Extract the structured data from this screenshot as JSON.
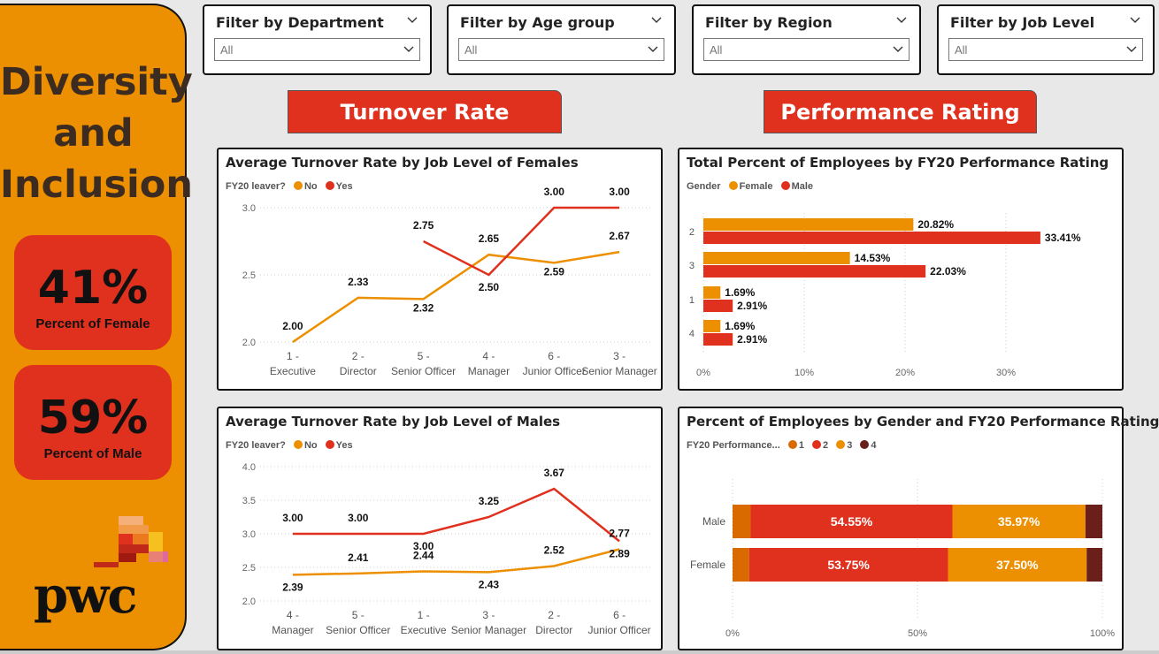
{
  "sidebar": {
    "title_lines": [
      "Diversity",
      "and",
      "Inclusion"
    ],
    "kpis": [
      {
        "value": "41%",
        "label": "Percent of Female"
      },
      {
        "value": "59%",
        "label": "Percent of Male"
      }
    ],
    "logo_text": "pwc"
  },
  "filters": [
    {
      "title": "Filter by Department",
      "value": "All"
    },
    {
      "title": "Filter by Age group",
      "value": "All"
    },
    {
      "title": "Filter by Region",
      "value": "All"
    },
    {
      "title": "Filter by Job Level",
      "value": "All"
    }
  ],
  "sections": {
    "turnover": "Turnover Rate",
    "performance": "Performance Rating"
  },
  "colors": {
    "orange": "#ec8f00",
    "red": "#e0301e",
    "darkred": "#6b1f1b",
    "darkorange": "#d96a00"
  },
  "chart_data": [
    {
      "type": "line",
      "title": "Average Turnover Rate by Job Level of Females",
      "legend_title": "FY20 leaver?",
      "categories": [
        "1 - Executive",
        "2 - Director",
        "5 - Senior Officer",
        "4 - Manager",
        "6 - Junior Officer",
        "3 - Senior Manager"
      ],
      "series": [
        {
          "name": "No",
          "values": [
            2.0,
            2.33,
            2.32,
            2.65,
            2.59,
            2.67
          ]
        },
        {
          "name": "Yes",
          "values": [
            null,
            null,
            2.75,
            2.5,
            3.0,
            3.0
          ]
        }
      ],
      "data_labels": {
        "No": [
          "2.00",
          "2.33",
          "2.32",
          "2.65",
          "2.59",
          "2.67"
        ],
        "Yes": [
          "",
          "",
          "2.75",
          "2.50",
          "3.00",
          "3.00"
        ]
      },
      "yticks": [
        "2.0",
        "2.5",
        "3.0"
      ],
      "ylim": [
        2.0,
        3.0
      ]
    },
    {
      "type": "line",
      "title": "Average Turnover Rate by Job Level of Males",
      "legend_title": "FY20 leaver?",
      "categories": [
        "4 - Manager",
        "5 - Senior Officer",
        "1 - Executive",
        "3 - Senior Manager",
        "2 - Director",
        "6 - Junior Officer"
      ],
      "series": [
        {
          "name": "No",
          "values": [
            2.39,
            2.41,
            2.44,
            2.43,
            2.52,
            2.77
          ]
        },
        {
          "name": "Yes",
          "values": [
            3.0,
            3.0,
            3.0,
            3.25,
            3.67,
            2.89
          ]
        }
      ],
      "data_labels": {
        "No": [
          "2.39",
          "2.41",
          "2.44",
          "2.43",
          "2.52",
          "2.77"
        ],
        "Yes": [
          "3.00",
          "3.00",
          "3.00",
          "3.25",
          "3.67",
          "2.89"
        ]
      },
      "yticks": [
        "2.0",
        "2.5",
        "3.0",
        "3.5",
        "4.0"
      ],
      "ylim": [
        2.0,
        4.0
      ]
    },
    {
      "type": "bar",
      "orientation": "horizontal",
      "title": "Total Percent of Employees by FY20 Performance Rating",
      "legend_title": "Gender",
      "categories": [
        "2",
        "3",
        "1",
        "4"
      ],
      "series": [
        {
          "name": "Female",
          "values": [
            20.82,
            14.53,
            1.69,
            1.69
          ]
        },
        {
          "name": "Male",
          "values": [
            33.41,
            22.03,
            2.91,
            2.91
          ]
        }
      ],
      "data_labels": {
        "Female": [
          "20.82%",
          "14.53%",
          "1.69%",
          "1.69%"
        ],
        "Male": [
          "33.41%",
          "22.03%",
          "2.91%",
          "2.91%"
        ]
      },
      "xticks": [
        "0%",
        "10%",
        "20%",
        "30%"
      ],
      "xlim": [
        0,
        40
      ]
    },
    {
      "type": "bar",
      "orientation": "horizontal",
      "stacked": "100%",
      "title": "Percent of Employees by Gender and FY20 Performance Rating",
      "legend_title": "FY20 Performance...",
      "categories": [
        "Male",
        "Female"
      ],
      "series": [
        {
          "name": "1",
          "values": [
            4.9,
            4.5
          ]
        },
        {
          "name": "2",
          "values": [
            54.55,
            53.75
          ]
        },
        {
          "name": "3",
          "values": [
            35.97,
            37.5
          ]
        },
        {
          "name": "4",
          "values": [
            4.58,
            4.25
          ]
        }
      ],
      "data_labels": {
        "2": [
          "54.55%",
          "53.75%"
        ],
        "3": [
          "35.97%",
          "37.50%"
        ]
      },
      "xticks": [
        "0%",
        "50%",
        "100%"
      ],
      "xlim": [
        0,
        100
      ]
    }
  ]
}
